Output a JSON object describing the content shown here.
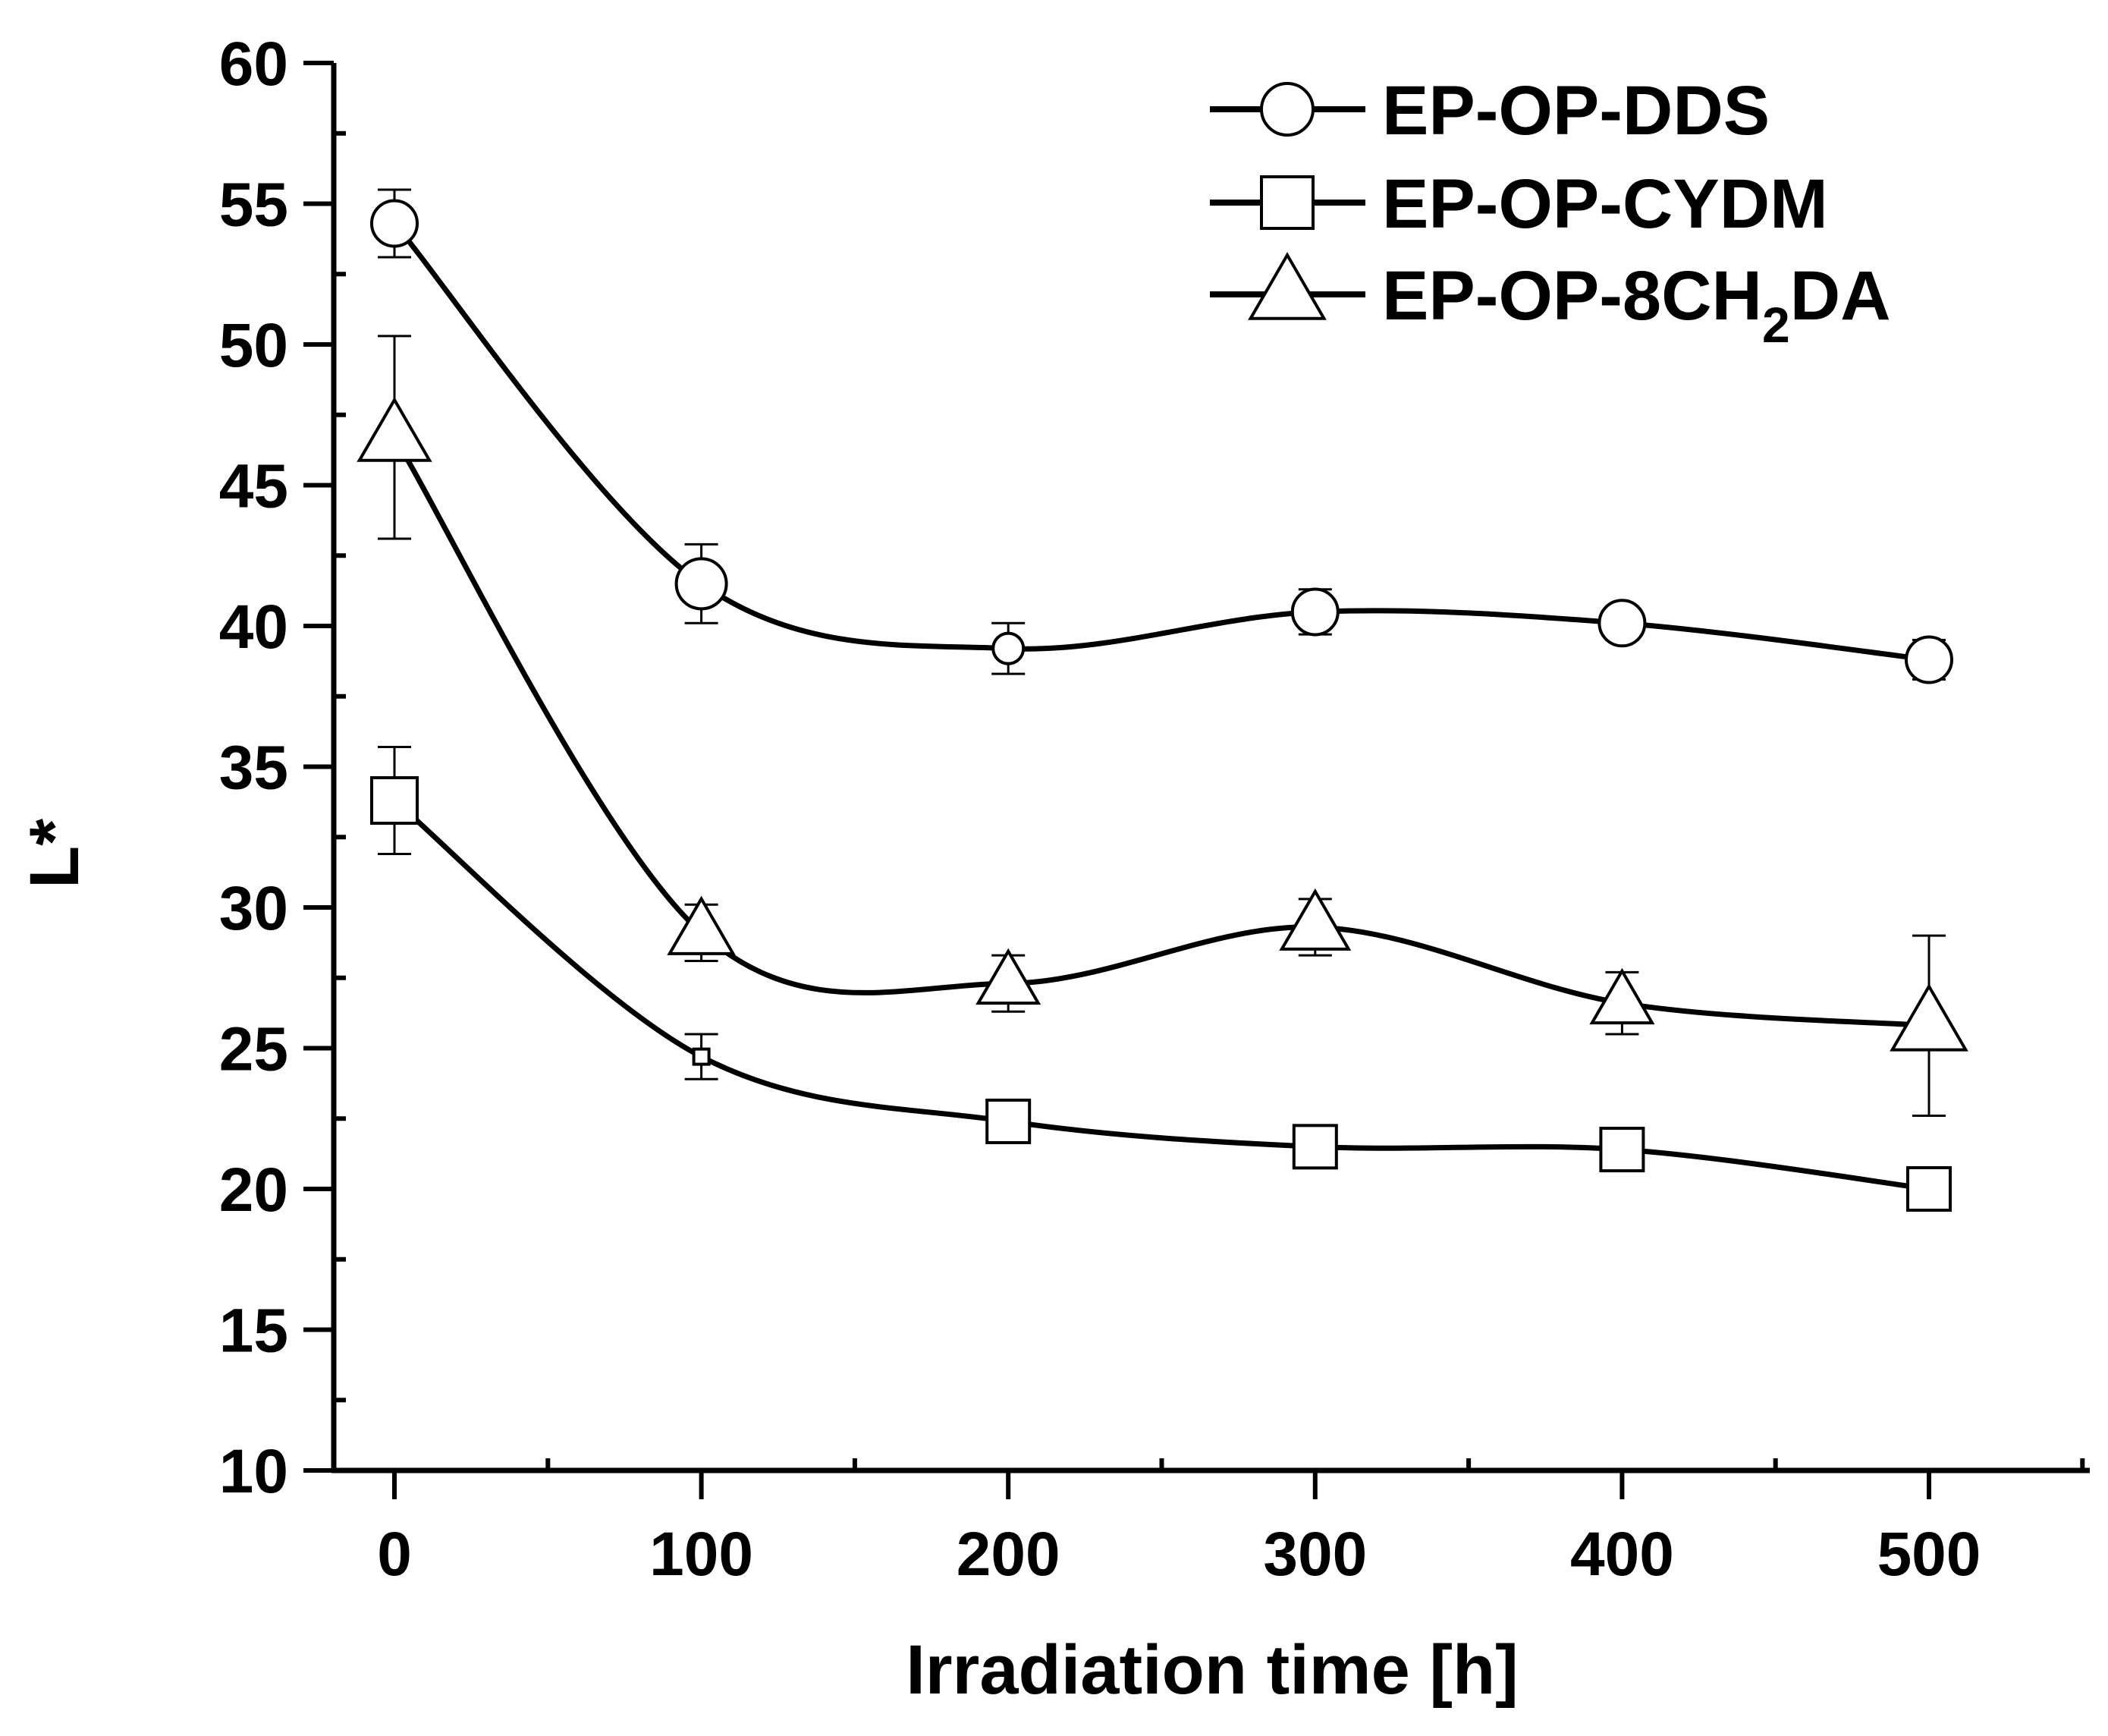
{
  "chart_data": {
    "type": "line",
    "title": "",
    "xlabel": "Irradiation time [h]",
    "ylabel": "L*",
    "x": [
      0,
      100,
      200,
      300,
      400,
      500
    ],
    "xlim": [
      -25,
      550
    ],
    "ylim": [
      10,
      60
    ],
    "xticks": [
      0,
      100,
      200,
      300,
      400,
      500
    ],
    "yticks": [
      10,
      15,
      20,
      25,
      30,
      35,
      40,
      45,
      50,
      55,
      60
    ],
    "grid": false,
    "legend_position": "top-right",
    "series": [
      {
        "name": "EP-OP-DDS",
        "label_main": "EP-OP-DDS",
        "label_sub": "",
        "label_tail": "",
        "marker": "circle",
        "values": [
          54.3,
          41.5,
          39.2,
          40.5,
          40.1,
          38.8
        ],
        "errors": [
          1.2,
          1.4,
          0.9,
          0.8,
          0.6,
          0.7
        ]
      },
      {
        "name": "EP-OP-CYDM",
        "label_main": "EP-OP-CYDM",
        "label_sub": "",
        "label_tail": "",
        "marker": "square",
        "values": [
          33.8,
          24.7,
          22.4,
          21.5,
          21.4,
          20.0
        ],
        "errors": [
          1.9,
          0.8,
          0.6,
          0.6,
          0.5,
          0.7
        ]
      },
      {
        "name": "EP-OP-8CH2DA",
        "label_main": "EP-OP-8CH",
        "label_sub": "2",
        "label_tail": "DA",
        "marker": "triangle",
        "values": [
          46.7,
          29.1,
          27.3,
          29.3,
          26.6,
          25.8
        ],
        "errors": [
          3.6,
          1.0,
          1.0,
          1.0,
          1.1,
          3.2
        ]
      }
    ]
  }
}
